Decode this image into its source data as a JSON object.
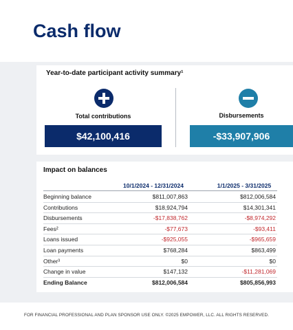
{
  "page": {
    "title": "Cash flow"
  },
  "summary": {
    "title": "Year-to-date participant activity summary¹",
    "contributions": {
      "label": "Total contributions",
      "value": "$42,100,416",
      "color": "#0b2b6b",
      "icon": "plus-circle-icon"
    },
    "disbursements": {
      "label": "Disbursements",
      "value": "-$33,907,906",
      "color": "#1f7fa8",
      "icon": "minus-circle-icon"
    }
  },
  "impact": {
    "title": "Impact on balances",
    "columns": [
      "10/1/2024 - 12/31/2024",
      "1/1/2025 - 3/31/2025"
    ],
    "rows": [
      {
        "label": "Beginning balance",
        "v1": "$811,007,863",
        "v2": "$812,006,584"
      },
      {
        "label": "Contributions",
        "v1": "$18,924,794",
        "v2": "$14,301,341"
      },
      {
        "label": "Disbursements",
        "v1": "-$17,838,762",
        "v2": "-$8,974,292"
      },
      {
        "label": "Fees²",
        "v1": "-$77,673",
        "v2": "-$93,411"
      },
      {
        "label": "Loans issued",
        "v1": "-$925,055",
        "v2": "-$965,659"
      },
      {
        "label": "Loan payments",
        "v1": "$768,284",
        "v2": "$863,499"
      },
      {
        "label": "Other³",
        "v1": "$0",
        "v2": "$0"
      },
      {
        "label": "Change in value",
        "v1": "$147,132",
        "v2": "-$11,281,069"
      },
      {
        "label": "Ending Balance",
        "v1": "$812,006,584",
        "v2": "$805,856,993"
      }
    ]
  },
  "footer": {
    "text": "FOR FINANCIAL PROFESSIONAL AND PLAN SPONSOR USE ONLY. ©2025 EMPOWER, LLC. ALL RIGHTS RESERVED."
  }
}
